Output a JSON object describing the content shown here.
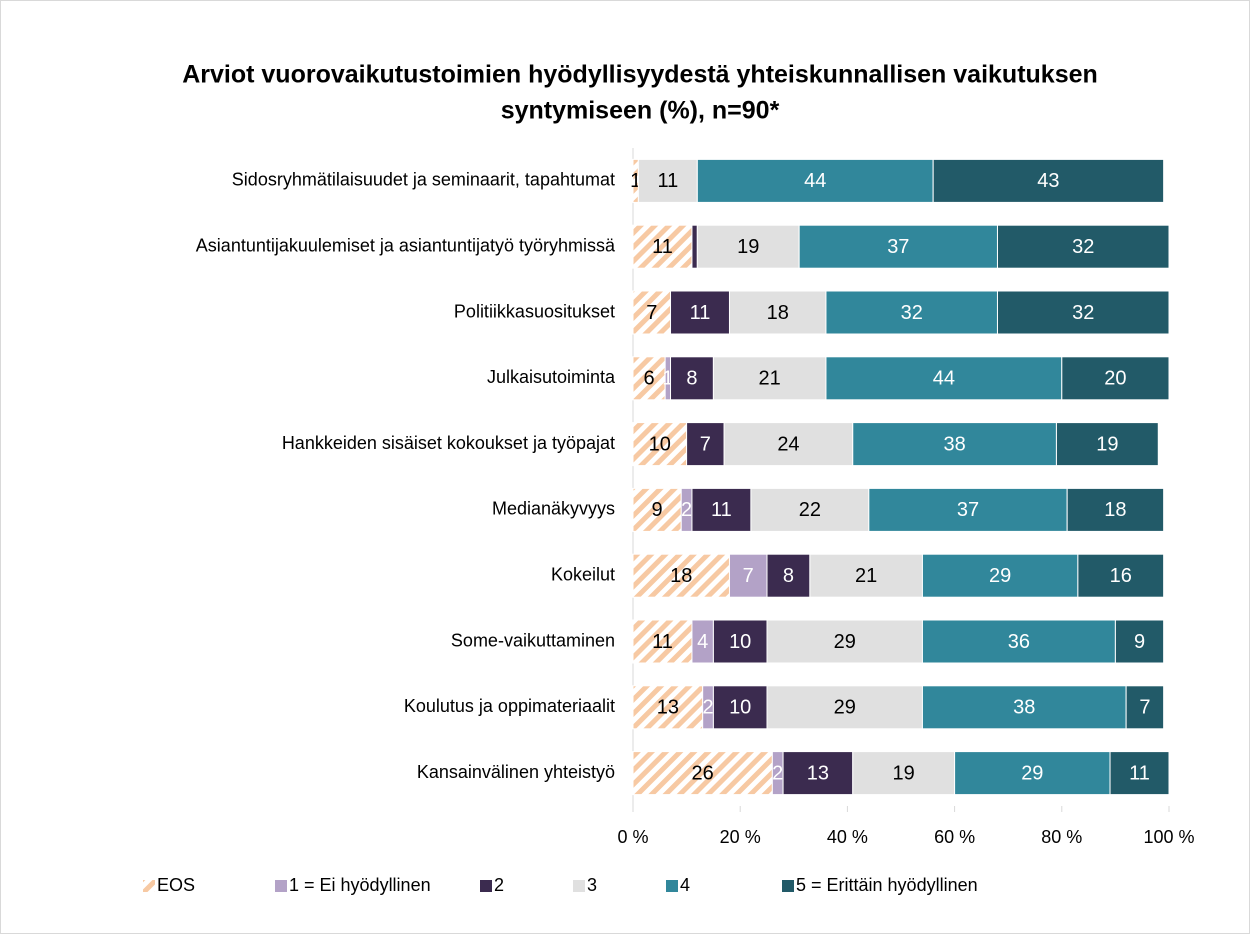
{
  "chart_data": {
    "type": "stacked_barh",
    "title": "Arviot vuorovaikutustoimien hyödyllisyydestä yhteiskunnallisen vaikutuksen syntymiseen (%), n=90*",
    "categories": [
      "Sidosryhmätilaisuudet ja seminaarit, tapahtumat",
      "Asiantuntijakuulemiset ja asiantuntijatyö työryhmissä",
      "Politiikkasuositukset",
      "Julkaisutoiminta",
      "Hankkeiden sisäiset kokoukset ja työpajat",
      "Medianäkyvyys",
      "Kokeilut",
      "Some-vaikuttaminen",
      "Koulutus ja oppimateriaalit",
      "Kansainvälinen yhteistyö"
    ],
    "series": [
      {
        "name": "EOS",
        "color": "#f7c9a3",
        "hatch": true,
        "values": [
          1,
          11,
          7,
          6,
          10,
          9,
          18,
          11,
          13,
          26
        ]
      },
      {
        "name": "1 = Ei hyödyllinen",
        "color": "#b3a2c7",
        "values": [
          0,
          0,
          0,
          1,
          0,
          2,
          7,
          4,
          2,
          2
        ],
        "value_labels": [
          null,
          null,
          null,
          "1",
          null,
          "2",
          "7",
          "4",
          "2",
          "2"
        ]
      },
      {
        "name": "2",
        "color": "#3b2b4f",
        "values": [
          0,
          1,
          11,
          8,
          7,
          11,
          8,
          10,
          10,
          13
        ],
        "value_labels": [
          null,
          null,
          "11",
          "8",
          "7",
          "11",
          "8",
          "10",
          "10",
          "13"
        ]
      },
      {
        "name": "3",
        "color": "#e0e0e0",
        "values": [
          11,
          19,
          18,
          21,
          24,
          22,
          21,
          29,
          29,
          19
        ]
      },
      {
        "name": "4",
        "color": "#31879b",
        "values": [
          44,
          37,
          32,
          44,
          38,
          37,
          29,
          36,
          38,
          29
        ]
      },
      {
        "name": "5 = Erittäin hyödyllinen",
        "color": "#225a68",
        "values": [
          43,
          32,
          32,
          20,
          19,
          18,
          16,
          9,
          7,
          11
        ]
      }
    ],
    "xlim": [
      0,
      100
    ],
    "xticks": [
      {
        "value": 0,
        "label": "0 %"
      },
      {
        "value": 20,
        "label": "20 %"
      },
      {
        "value": 40,
        "label": "40 %"
      },
      {
        "value": 60,
        "label": "60 %"
      },
      {
        "value": 80,
        "label": "80 %"
      },
      {
        "value": 100,
        "label": "100 %"
      }
    ],
    "legend": "bottom"
  }
}
